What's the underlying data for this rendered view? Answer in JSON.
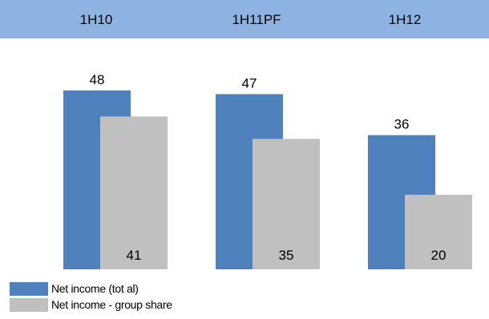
{
  "chart_data": {
    "type": "bar",
    "categories": [
      "1H10",
      "1H11PF",
      "1H12"
    ],
    "series": [
      {
        "name": "Net income (tot al)",
        "values": [
          48,
          47,
          36
        ],
        "color": "#4f81bd"
      },
      {
        "name": "Net income - group share",
        "values": [
          41,
          35,
          20
        ],
        "color": "#c0c0c0"
      }
    ],
    "ylim": [
      0,
      60
    ],
    "grid": false,
    "legend_position": "bottom-left",
    "header_color": "#8db3e2"
  }
}
